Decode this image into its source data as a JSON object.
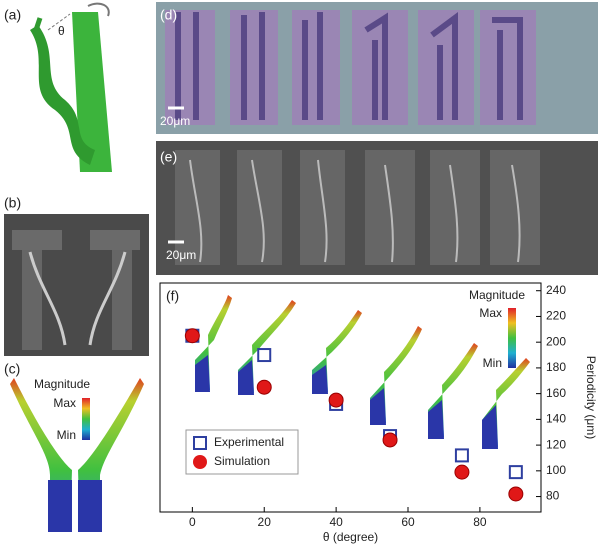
{
  "panels": {
    "a": {
      "label": "(a)",
      "angle": "θ"
    },
    "b": {
      "label": "(b)"
    },
    "c": {
      "label": "(c)",
      "colorbar": {
        "title": "Magnitude",
        "max": "Max",
        "min": "Min"
      }
    },
    "d": {
      "label": "(d)",
      "scale": "20μm"
    },
    "e": {
      "label": "(e)",
      "scale": "20μm"
    },
    "f": {
      "label": "(f)",
      "colorbar": {
        "title": "Magnitude",
        "max": "Max",
        "min": "Min"
      }
    }
  },
  "chart_data": {
    "type": "scatter",
    "x_label": "θ (degree)",
    "y_label": "Periodicity (μm)",
    "xlim": [
      -9,
      97
    ],
    "ylim": [
      68,
      246
    ],
    "xticks": [
      0,
      20,
      40,
      60,
      80
    ],
    "yticks": [
      80,
      100,
      120,
      140,
      160,
      180,
      200,
      220,
      240
    ],
    "legend": "lower-left",
    "series": [
      {
        "name": "Experimental",
        "color": "#2e3fa0",
        "marker": "square",
        "x": [
          0,
          20,
          40,
          55,
          75,
          90
        ],
        "values": [
          205,
          190,
          152,
          127,
          112,
          99
        ]
      },
      {
        "name": "Simulation",
        "color": "#e01818",
        "marker": "sphere",
        "x": [
          0,
          20,
          40,
          55,
          75,
          90
        ],
        "values": [
          205,
          165,
          155,
          124,
          99,
          82
        ]
      }
    ]
  }
}
